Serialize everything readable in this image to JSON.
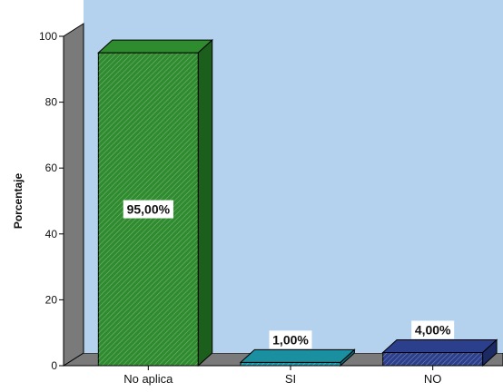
{
  "chart_data": {
    "type": "bar",
    "categories": [
      "No aplica",
      "SI",
      "NO"
    ],
    "values": [
      95,
      1,
      4
    ],
    "data_labels": [
      "95,00%",
      "1,00%",
      "4,00%"
    ],
    "ylabel": "Porcentaje",
    "xlabel": "",
    "ylim": [
      0,
      100
    ],
    "yticks": [
      0,
      20,
      40,
      60,
      80,
      100
    ],
    "bar_colors": [
      "#2e8b2e",
      "#1a8fa0",
      "#2b3f8c"
    ],
    "bar_dark_colors": [
      "#1c5e1c",
      "#0f6471",
      "#1b2a63"
    ],
    "background_color": "#b4d2ee",
    "style": "3d-hatched",
    "grid": false,
    "legend": "none"
  }
}
